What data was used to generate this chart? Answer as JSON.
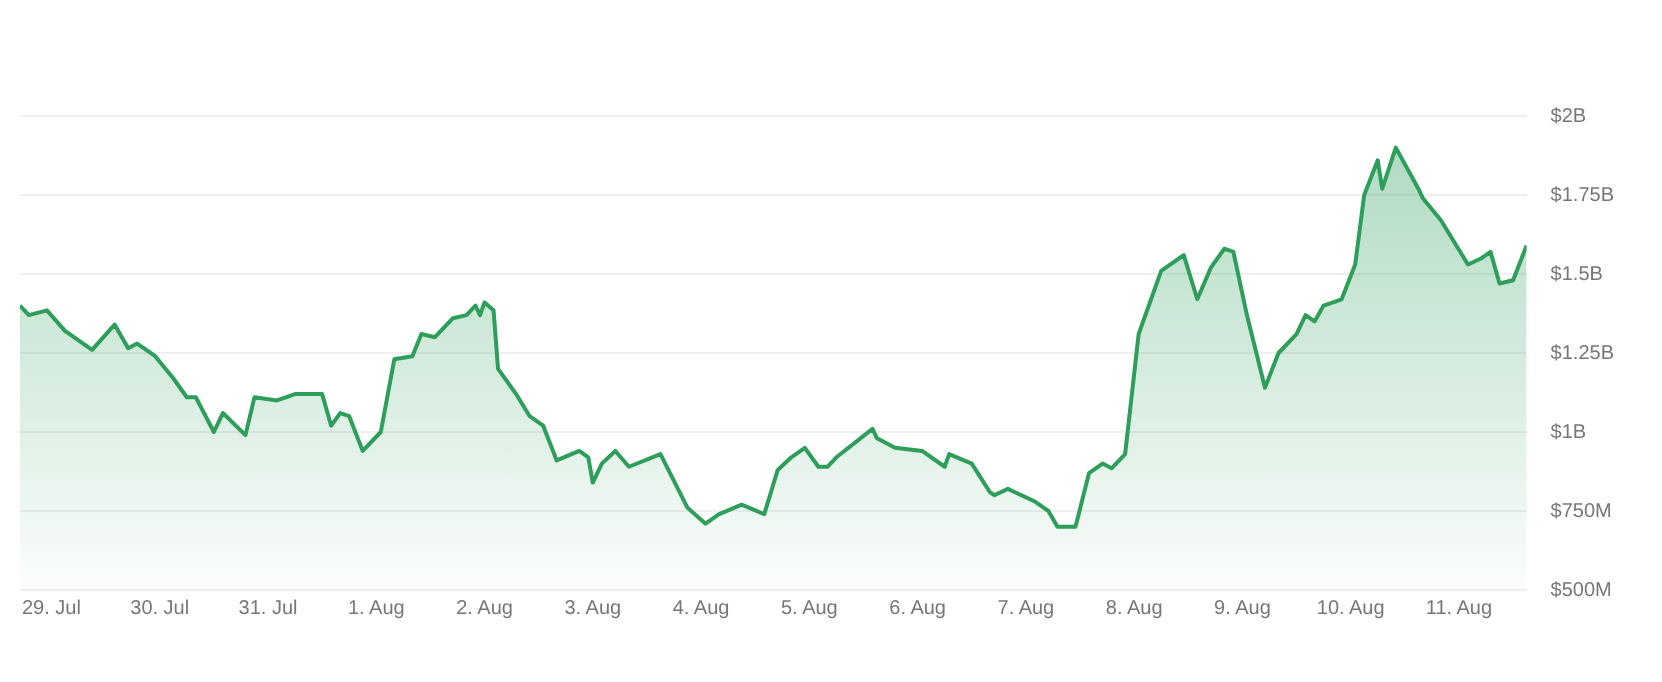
{
  "chart_data": {
    "type": "area",
    "x": [
      "--07-28T17:00",
      "--07-28T19:00",
      "--07-28T23:00",
      "--07-29T03:00",
      "--07-29T09:00",
      "--07-29T14:00",
      "--07-29T17:00",
      "--07-29T19:00",
      "--07-29T23:00",
      "--07-30T03:00",
      "--07-30T06:00",
      "--07-30T08:00",
      "--07-30T12:00",
      "--07-30T14:00",
      "--07-30T19:00",
      "--07-30T21:00",
      "--07-31T02:00",
      "--07-31T06:00",
      "--07-31T12:00",
      "--07-31T14:00",
      "--07-31T16:00",
      "--07-31T18:00",
      "--07-31T21:00",
      "--08-01T01:00",
      "--08-01T04:00",
      "--08-01T08:00",
      "--08-01T10:00",
      "--08-01T13:00",
      "--08-01T17:00",
      "--08-01T20:00",
      "--08-01T22:00",
      "--08-01T23:00",
      "--08-02T00:00",
      "--08-02T02:00",
      "--08-02T03:00",
      "--08-02T07:00",
      "--08-02T10:00",
      "--08-02T13:00",
      "--08-02T16:00",
      "--08-02T21:00",
      "--08-02T23:00",
      "--08-03T00:00",
      "--08-03T02:00",
      "--08-03T05:00",
      "--08-03T08:00",
      "--08-03T15:00",
      "--08-03T21:00",
      "--08-04T01:00",
      "--08-04T04:00",
      "--08-04T09:00",
      "--08-04T14:00",
      "--08-04T17:00",
      "--08-04T20:00",
      "--08-04T23:00",
      "--08-05T02:00",
      "--08-05T04:00",
      "--08-05T06:00",
      "--08-05T14:00",
      "--08-05T15:00",
      "--08-05T19:00",
      "--08-06T01:00",
      "--08-06T06:00",
      "--08-06T07:00",
      "--08-06T12:00",
      "--08-06T16:00",
      "--08-06T17:00",
      "--08-06T20:00",
      "--08-07T02:00",
      "--08-07T05:00",
      "--08-07T07:00",
      "--08-07T11:00",
      "--08-07T14:00",
      "--08-07T17:00",
      "--08-07T19:00",
      "--08-07T22:00",
      "--08-08T01:00",
      "--08-08T06:00",
      "--08-08T11:00",
      "--08-08T14:00",
      "--08-08T17:00",
      "--08-08T20:00",
      "--08-08T22:00",
      "--08-09T01:00",
      "--08-09T05:00",
      "--08-09T08:00",
      "--08-09T12:00",
      "--08-09T14:00",
      "--08-09T16:00",
      "--08-09T18:00",
      "--08-09T22:00",
      "--08-10T01:00",
      "--08-10T03:00",
      "--08-10T06:00",
      "--08-10T07:00",
      "--08-10T10:00",
      "--08-10T15:00",
      "--08-10T16:00",
      "--08-10T20:00",
      "--08-11T02:00",
      "--08-11T05:00",
      "--08-11T07:00",
      "--08-11T09:00",
      "--08-11T12:00",
      "--08-11T15:00"
    ],
    "series": [
      {
        "color": "#2e9e5b",
        "values": [
          1400000000,
          1370000000,
          1385000000,
          1320000000,
          1260000000,
          1340000000,
          1265000000,
          1280000000,
          1240000000,
          1170000000,
          1110000000,
          1110000000,
          1000000000,
          1060000000,
          990000000,
          1110000000,
          1100000000,
          1120000000,
          1120000000,
          1020000000,
          1060000000,
          1050000000,
          940000000,
          1000000000,
          1230000000,
          1240000000,
          1310000000,
          1300000000,
          1360000000,
          1370000000,
          1400000000,
          1370000000,
          1410000000,
          1385000000,
          1200000000,
          1120000000,
          1050000000,
          1020000000,
          910000000,
          940000000,
          920000000,
          840000000,
          900000000,
          940000000,
          890000000,
          930000000,
          760000000,
          710000000,
          740000000,
          770000000,
          740000000,
          880000000,
          920000000,
          950000000,
          890000000,
          890000000,
          920000000,
          1010000000,
          980000000,
          950000000,
          940000000,
          890000000,
          930000000,
          900000000,
          810000000,
          800000000,
          820000000,
          780000000,
          750000000,
          700000000,
          700000000,
          870000000,
          900000000,
          885000000,
          930000000,
          1310000000,
          1510000000,
          1560000000,
          1420000000,
          1520000000,
          1580000000,
          1570000000,
          1370000000,
          1140000000,
          1250000000,
          1310000000,
          1370000000,
          1350000000,
          1400000000,
          1420000000,
          1530000000,
          1750000000,
          1860000000,
          1770000000,
          1900000000,
          1770000000,
          1740000000,
          1670000000,
          1530000000,
          1550000000,
          1570000000,
          1470000000,
          1480000000,
          1590000000
        ]
      }
    ],
    "xlim": [
      "--07-28T17:00",
      "--08-11T15:00"
    ],
    "xticks": [
      {
        "value": "--07-29",
        "label": "29. Jul"
      },
      {
        "value": "--07-30",
        "label": "30. Jul"
      },
      {
        "value": "--07-31",
        "label": "31. Jul"
      },
      {
        "value": "--08-01",
        "label": "1. Aug"
      },
      {
        "value": "--08-02",
        "label": "2. Aug"
      },
      {
        "value": "--08-03",
        "label": "3. Aug"
      },
      {
        "value": "--08-04",
        "label": "4. Aug"
      },
      {
        "value": "--08-05",
        "label": "5. Aug"
      },
      {
        "value": "--08-06",
        "label": "6. Aug"
      },
      {
        "value": "--08-07",
        "label": "7. Aug"
      },
      {
        "value": "--08-08",
        "label": "8. Aug"
      },
      {
        "value": "--08-09",
        "label": "9. Aug"
      },
      {
        "value": "--08-10",
        "label": "10. Aug"
      },
      {
        "value": "--08-11",
        "label": "11. Aug"
      }
    ],
    "ylim": [
      500000000,
      2000000000
    ],
    "yticks": [
      {
        "value": 500000000,
        "label": "$500M"
      },
      {
        "value": 750000000,
        "label": "$750M"
      },
      {
        "value": 1000000000,
        "label": "$1B"
      },
      {
        "value": 1250000000,
        "label": "$1.25B"
      },
      {
        "value": 1500000000,
        "label": "$1.5B"
      },
      {
        "value": 1750000000,
        "label": "$1.75B"
      },
      {
        "value": 2000000000,
        "label": "$2B"
      }
    ],
    "grid": "y",
    "legend": false,
    "marker": "none",
    "line_style": "solid"
  }
}
